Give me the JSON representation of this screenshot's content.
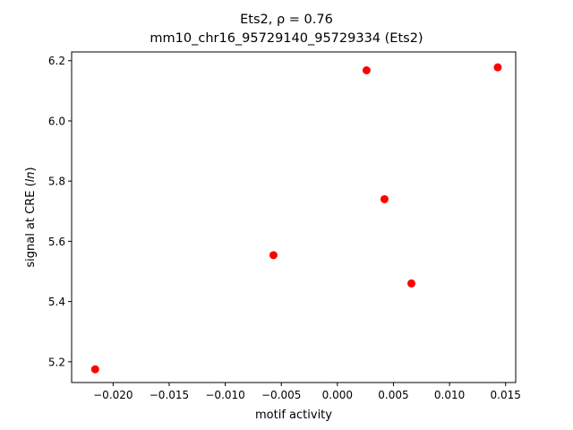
{
  "chart_data": {
    "type": "scatter",
    "title_line1": "Ets2, ρ = 0.76",
    "title_line2": "mm10_chr16_95729140_95729334 (Ets2)",
    "xlabel": "motif activity",
    "ylabel": "signal at CRE (ln)",
    "xlim": [
      -0.0237,
      0.0159
    ],
    "ylim": [
      5.131,
      6.229
    ],
    "xticks": [
      -0.02,
      -0.015,
      -0.01,
      -0.005,
      0.0,
      0.005,
      0.01,
      0.015
    ],
    "xtick_labels": [
      "−0.020",
      "−0.015",
      "−0.010",
      "−0.005",
      "0.000",
      "0.005",
      "0.010",
      "0.015"
    ],
    "yticks": [
      5.2,
      5.4,
      5.6,
      5.8,
      6.0,
      6.2
    ],
    "ytick_labels": [
      "5.2",
      "5.4",
      "5.6",
      "5.8",
      "6.0",
      "6.2"
    ],
    "grid": false,
    "marker_color": "#ff0000",
    "series": [
      {
        "points": [
          {
            "x": -0.0216,
            "y": 5.175
          },
          {
            "x": -0.0057,
            "y": 5.554
          },
          {
            "x": 0.0026,
            "y": 6.168
          },
          {
            "x": 0.0042,
            "y": 5.74
          },
          {
            "x": 0.0066,
            "y": 5.46
          },
          {
            "x": 0.0143,
            "y": 6.178
          }
        ]
      }
    ]
  }
}
